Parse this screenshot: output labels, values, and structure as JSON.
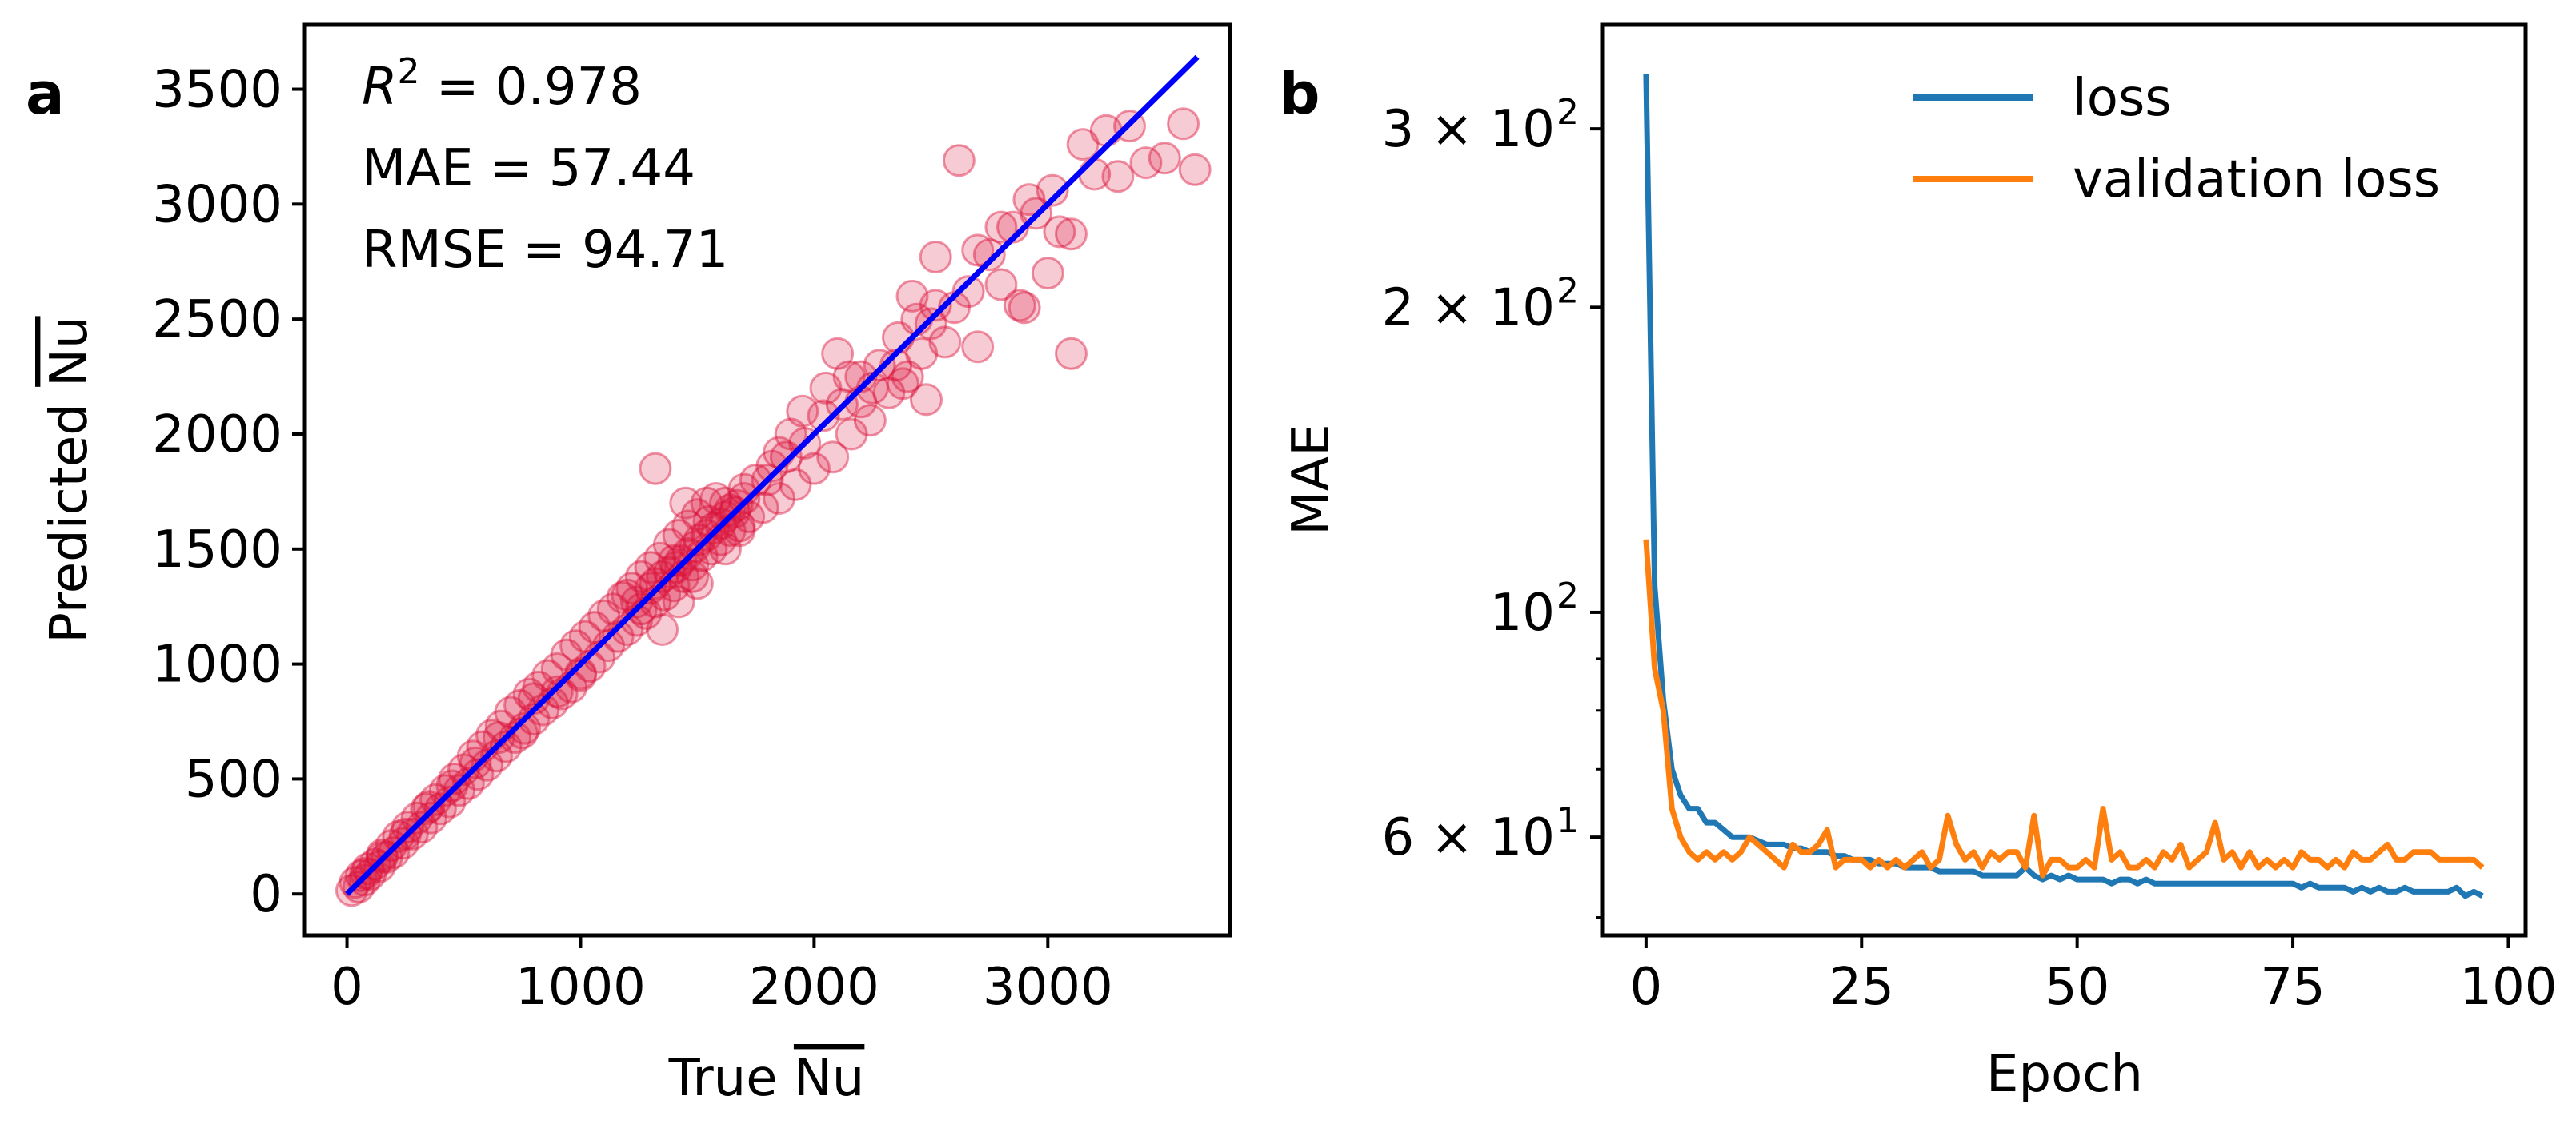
{
  "panels": {
    "a_label": "a",
    "b_label": "b"
  },
  "stats": {
    "r2_label": "R",
    "r2_exp": "2",
    "r2_value": " = 0.978",
    "mae": "MAE = 57.44",
    "rmse": "RMSE = 94.71"
  },
  "colors": {
    "scatter": "#dc143c",
    "fit": "#0000ff",
    "loss": "#1f77b4",
    "validation": "#ff7f0e"
  },
  "chart_data": [
    {
      "type": "scatter",
      "title": "",
      "xlabel": "True Nu",
      "ylabel": "Predicted Nu",
      "xlabel_prefix": "True ",
      "ylabel_prefix": "Predicted ",
      "symbol": "Nu",
      "xlim": [
        -180,
        3780
      ],
      "ylim": [
        -180,
        3780
      ],
      "xticks": [
        0,
        1000,
        2000,
        3000
      ],
      "yticks": [
        0,
        500,
        1000,
        1500,
        2000,
        2500,
        3000,
        3500
      ],
      "fit_line": {
        "x": [
          0,
          3640
        ],
        "y": [
          0,
          3640
        ]
      },
      "points": [
        [
          20,
          15
        ],
        [
          35,
          50
        ],
        [
          50,
          30
        ],
        [
          60,
          80
        ],
        [
          75,
          60
        ],
        [
          90,
          110
        ],
        [
          100,
          85
        ],
        [
          120,
          130
        ],
        [
          140,
          120
        ],
        [
          150,
          170
        ],
        [
          170,
          160
        ],
        [
          190,
          210
        ],
        [
          200,
          180
        ],
        [
          220,
          250
        ],
        [
          240,
          220
        ],
        [
          260,
          290
        ],
        [
          280,
          260
        ],
        [
          300,
          330
        ],
        [
          320,
          290
        ],
        [
          340,
          370
        ],
        [
          360,
          330
        ],
        [
          380,
          410
        ],
        [
          400,
          370
        ],
        [
          420,
          450
        ],
        [
          440,
          400
        ],
        [
          460,
          500
        ],
        [
          480,
          450
        ],
        [
          500,
          540
        ],
        [
          520,
          480
        ],
        [
          540,
          600
        ],
        [
          560,
          520
        ],
        [
          580,
          640
        ],
        [
          600,
          560
        ],
        [
          620,
          690
        ],
        [
          640,
          600
        ],
        [
          660,
          730
        ],
        [
          680,
          640
        ],
        [
          700,
          790
        ],
        [
          720,
          680
        ],
        [
          740,
          820
        ],
        [
          760,
          720
        ],
        [
          780,
          870
        ],
        [
          800,
          760
        ],
        [
          820,
          900
        ],
        [
          840,
          800
        ],
        [
          860,
          950
        ],
        [
          880,
          830
        ],
        [
          900,
          980
        ],
        [
          920,
          870
        ],
        [
          940,
          1040
        ],
        [
          960,
          900
        ],
        [
          980,
          1080
        ],
        [
          1000,
          950
        ],
        [
          1020,
          1120
        ],
        [
          1040,
          990
        ],
        [
          1060,
          1160
        ],
        [
          1080,
          1030
        ],
        [
          1100,
          1210
        ],
        [
          1120,
          1080
        ],
        [
          1140,
          1240
        ],
        [
          1160,
          1120
        ],
        [
          1180,
          1290
        ],
        [
          1200,
          1150
        ],
        [
          1220,
          1330
        ],
        [
          1240,
          1190
        ],
        [
          1260,
          1380
        ],
        [
          1280,
          1220
        ],
        [
          1300,
          1420
        ],
        [
          1320,
          1270
        ],
        [
          1340,
          1460
        ],
        [
          1360,
          1300
        ],
        [
          1380,
          1520
        ],
        [
          1400,
          1340
        ],
        [
          1420,
          1560
        ],
        [
          1440,
          1380
        ],
        [
          1460,
          1600
        ],
        [
          1480,
          1430
        ],
        [
          1500,
          1650
        ],
        [
          1520,
          1470
        ],
        [
          1540,
          1700
        ],
        [
          1560,
          1500
        ],
        [
          1580,
          1720
        ],
        [
          1600,
          1540
        ],
        [
          1620,
          1700
        ],
        [
          1640,
          1580
        ],
        [
          1660,
          1660
        ],
        [
          1680,
          1600
        ],
        [
          1700,
          1760
        ],
        [
          1720,
          1640
        ],
        [
          1750,
          1800
        ],
        [
          1780,
          1680
        ],
        [
          1820,
          1860
        ],
        [
          1850,
          1720
        ],
        [
          1880,
          1900
        ],
        [
          1920,
          1780
        ],
        [
          1960,
          1960
        ],
        [
          2000,
          1850
        ],
        [
          2040,
          2080
        ],
        [
          2080,
          1900
        ],
        [
          2120,
          2130
        ],
        [
          2160,
          2000
        ],
        [
          2200,
          2250
        ],
        [
          2240,
          2060
        ],
        [
          2280,
          2300
        ],
        [
          2320,
          2180
        ],
        [
          2360,
          2420
        ],
        [
          2400,
          2250
        ],
        [
          2440,
          2500
        ],
        [
          2480,
          2150
        ],
        [
          2520,
          2560
        ],
        [
          2560,
          2400
        ],
        [
          2600,
          2550
        ],
        [
          2620,
          3190
        ],
        [
          2660,
          2620
        ],
        [
          2700,
          2380
        ],
        [
          2750,
          2780
        ],
        [
          2800,
          2650
        ],
        [
          2850,
          2900
        ],
        [
          2900,
          2550
        ],
        [
          2950,
          2960
        ],
        [
          3000,
          2700
        ],
        [
          3050,
          2880
        ],
        [
          3100,
          2350
        ],
        [
          3150,
          3260
        ],
        [
          3200,
          3130
        ],
        [
          3250,
          3320
        ],
        [
          3300,
          3120
        ],
        [
          3350,
          3340
        ],
        [
          3420,
          3180
        ],
        [
          3500,
          3200
        ],
        [
          3580,
          3350
        ],
        [
          3630,
          3150
        ],
        [
          1240,
          1270
        ],
        [
          1260,
          1240
        ],
        [
          1300,
          1330
        ],
        [
          1320,
          1350
        ],
        [
          1350,
          1380
        ],
        [
          1380,
          1400
        ],
        [
          1410,
          1420
        ],
        [
          1430,
          1450
        ],
        [
          1460,
          1480
        ],
        [
          1490,
          1510
        ],
        [
          1510,
          1540
        ],
        [
          1540,
          1560
        ],
        [
          1570,
          1590
        ],
        [
          1600,
          1610
        ],
        [
          1620,
          1640
        ],
        [
          1640,
          1670
        ],
        [
          1670,
          1690
        ],
        [
          1700,
          1720
        ],
        [
          1320,
          1850
        ],
        [
          1400,
          1450
        ],
        [
          1450,
          1700
        ],
        [
          1500,
          1350
        ],
        [
          1550,
          1620
        ],
        [
          1350,
          1150
        ],
        [
          1420,
          1270
        ],
        [
          1480,
          1380
        ],
        [
          1620,
          1500
        ],
        [
          1680,
          1580
        ],
        [
          1800,
          1800
        ],
        [
          1850,
          1920
        ],
        [
          1900,
          2000
        ],
        [
          1950,
          2100
        ],
        [
          2050,
          2200
        ],
        [
          2100,
          2350
        ],
        [
          2150,
          2250
        ],
        [
          2250,
          2200
        ],
        [
          2350,
          2300
        ],
        [
          2420,
          2600
        ],
        [
          2520,
          2770
        ],
        [
          2380,
          2220
        ],
        [
          2460,
          2350
        ],
        [
          2500,
          2480
        ],
        [
          2700,
          2800
        ],
        [
          2800,
          2900
        ],
        [
          2880,
          2560
        ],
        [
          2920,
          3020
        ],
        [
          3020,
          3060
        ],
        [
          3100,
          2870
        ],
        [
          2200,
          2140
        ],
        [
          1200,
          1300
        ],
        [
          1000,
          960
        ],
        [
          900,
          880
        ],
        [
          800,
          850
        ],
        [
          750,
          700
        ],
        [
          650,
          680
        ],
        [
          550,
          570
        ],
        [
          450,
          470
        ],
        [
          350,
          380
        ],
        [
          250,
          260
        ],
        [
          150,
          160
        ],
        [
          80,
          90
        ]
      ]
    },
    {
      "type": "line",
      "title": "",
      "xlabel": "Epoch",
      "ylabel": "MAE",
      "yscale": "log",
      "xlim": [
        -5,
        102
      ],
      "ylim": [
        48,
        380
      ],
      "xticks": [
        0,
        25,
        50,
        75,
        100
      ],
      "yticks_major": [
        {
          "value": 300,
          "mant": "3 × 10",
          "exp": "2"
        },
        {
          "value": 200,
          "mant": "2 × 10",
          "exp": "2"
        },
        {
          "value": 100,
          "mant": "10",
          "exp": "2"
        },
        {
          "value": 60,
          "mant": "6 × 10",
          "exp": "1"
        }
      ],
      "yticks_minor": [
        50,
        70,
        80,
        90
      ],
      "legend_position": "top-right",
      "series": [
        {
          "name": "loss",
          "values": [
            340,
            106,
            82,
            70,
            66,
            64,
            64,
            62,
            62,
            61,
            60,
            60,
            60,
            59.5,
            59,
            59,
            59,
            58.5,
            58.5,
            58,
            58,
            58,
            57.5,
            57.5,
            57,
            57,
            57,
            56.5,
            56.5,
            56.5,
            56,
            56,
            56,
            56,
            55.5,
            55.5,
            55.5,
            55.5,
            55.5,
            55,
            55,
            55,
            55,
            55,
            56,
            55,
            54.5,
            55,
            54.5,
            55,
            54.5,
            54.5,
            54.5,
            54.5,
            54,
            54.5,
            54.5,
            54,
            54.5,
            54,
            54,
            54,
            54,
            54,
            54,
            54,
            54,
            54,
            54,
            54,
            54,
            54,
            54,
            54,
            54,
            54,
            53.5,
            54,
            53.5,
            53.5,
            53.5,
            53.5,
            53,
            53.5,
            53,
            53.5,
            53,
            53,
            53.5,
            53,
            53,
            53,
            53,
            53,
            53.5,
            52.5,
            53,
            52.5
          ]
        },
        {
          "name": "validation loss",
          "values": [
            118,
            88,
            80,
            64,
            60,
            58,
            57,
            58,
            57,
            58,
            57,
            58,
            60,
            59,
            58,
            57,
            56,
            59,
            58,
            58,
            59,
            61,
            56,
            57,
            57,
            57,
            56,
            57,
            56,
            57,
            56,
            57,
            58,
            56,
            57,
            63,
            59,
            57,
            58,
            56,
            58,
            57,
            58,
            58,
            56,
            63,
            55,
            57,
            57,
            56,
            56,
            57,
            56,
            64,
            57,
            58,
            56,
            56,
            57,
            56,
            58,
            57,
            59,
            56,
            57,
            58,
            62,
            57,
            58,
            56,
            58,
            56,
            57,
            56,
            57,
            56,
            58,
            57,
            57,
            56,
            57,
            56,
            58,
            57,
            57,
            58,
            59,
            57,
            57,
            58,
            58,
            58,
            57,
            57,
            57,
            57,
            57,
            56
          ]
        }
      ]
    }
  ]
}
